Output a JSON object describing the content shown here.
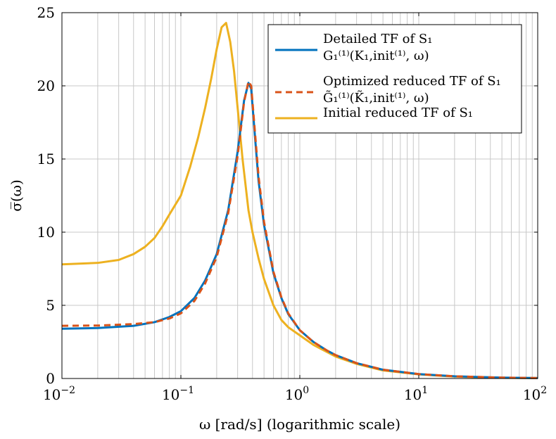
{
  "chart_data": {
    "type": "line",
    "xscale": "log",
    "xlim": [
      0.01,
      100
    ],
    "ylim": [
      0,
      25
    ],
    "grid": true,
    "legend_position": "top-right",
    "xlabel": "ω [rad/s] (logarithmic scale)",
    "ylabel": "σ̅(ω)",
    "x_tick_labels": [
      {
        "value": 0.01,
        "base": "10",
        "exp": "−2"
      },
      {
        "value": 0.1,
        "base": "10",
        "exp": "−1"
      },
      {
        "value": 1,
        "base": "10",
        "exp": "0"
      },
      {
        "value": 10,
        "base": "10",
        "exp": "1"
      },
      {
        "value": 100,
        "base": "10",
        "exp": "2"
      }
    ],
    "y_ticks": [
      0,
      5,
      10,
      15,
      20,
      25
    ],
    "series": [
      {
        "name": "Detailed TF of S₁",
        "name_line2": "G₁⁽¹⁾(K₁,init⁽¹⁾, ω)",
        "color": "#0072BD",
        "style": "solid",
        "points": [
          [
            0.01,
            3.4
          ],
          [
            0.02,
            3.45
          ],
          [
            0.04,
            3.6
          ],
          [
            0.06,
            3.85
          ],
          [
            0.08,
            4.2
          ],
          [
            0.1,
            4.6
          ],
          [
            0.13,
            5.5
          ],
          [
            0.16,
            6.7
          ],
          [
            0.2,
            8.5
          ],
          [
            0.25,
            11.5
          ],
          [
            0.3,
            15.5
          ],
          [
            0.34,
            19.0
          ],
          [
            0.37,
            20.2
          ],
          [
            0.39,
            19.8
          ],
          [
            0.42,
            16.5
          ],
          [
            0.45,
            13.5
          ],
          [
            0.5,
            10.5
          ],
          [
            0.6,
            7.2
          ],
          [
            0.7,
            5.5
          ],
          [
            0.8,
            4.4
          ],
          [
            1.0,
            3.3
          ],
          [
            1.3,
            2.5
          ],
          [
            1.7,
            1.9
          ],
          [
            2.0,
            1.6
          ],
          [
            3.0,
            1.05
          ],
          [
            5.0,
            0.6
          ],
          [
            10.0,
            0.3
          ],
          [
            20.0,
            0.15
          ],
          [
            50.0,
            0.06
          ],
          [
            100.0,
            0.03
          ]
        ]
      },
      {
        "name": "Optimized reduced TF of S₁",
        "name_line2": "G̃₁⁽¹⁾(K̃₁,init⁽¹⁾, ω)",
        "color": "#D95319",
        "style": "dashed",
        "points": [
          [
            0.01,
            3.6
          ],
          [
            0.02,
            3.62
          ],
          [
            0.04,
            3.72
          ],
          [
            0.06,
            3.85
          ],
          [
            0.08,
            4.1
          ],
          [
            0.1,
            4.45
          ],
          [
            0.13,
            5.3
          ],
          [
            0.16,
            6.5
          ],
          [
            0.2,
            8.3
          ],
          [
            0.25,
            11.3
          ],
          [
            0.3,
            15.2
          ],
          [
            0.34,
            18.9
          ],
          [
            0.37,
            20.3
          ],
          [
            0.39,
            20.0
          ],
          [
            0.42,
            16.8
          ],
          [
            0.45,
            13.8
          ],
          [
            0.5,
            10.7
          ],
          [
            0.6,
            7.3
          ],
          [
            0.7,
            5.55
          ],
          [
            0.8,
            4.45
          ],
          [
            1.0,
            3.3
          ],
          [
            1.3,
            2.5
          ],
          [
            1.7,
            1.9
          ],
          [
            2.0,
            1.6
          ],
          [
            3.0,
            1.05
          ],
          [
            5.0,
            0.6
          ],
          [
            10.0,
            0.3
          ],
          [
            20.0,
            0.15
          ],
          [
            50.0,
            0.06
          ],
          [
            100.0,
            0.03
          ]
        ]
      },
      {
        "name": "Initial reduced TF of S₁",
        "color": "#EDB120",
        "style": "solid",
        "points": [
          [
            0.01,
            7.8
          ],
          [
            0.02,
            7.9
          ],
          [
            0.03,
            8.1
          ],
          [
            0.04,
            8.5
          ],
          [
            0.05,
            9.0
          ],
          [
            0.06,
            9.6
          ],
          [
            0.07,
            10.4
          ],
          [
            0.08,
            11.2
          ],
          [
            0.1,
            12.5
          ],
          [
            0.12,
            14.5
          ],
          [
            0.14,
            16.5
          ],
          [
            0.16,
            18.5
          ],
          [
            0.18,
            20.5
          ],
          [
            0.2,
            22.5
          ],
          [
            0.22,
            24.0
          ],
          [
            0.24,
            24.3
          ],
          [
            0.26,
            23.0
          ],
          [
            0.28,
            21.0
          ],
          [
            0.3,
            18.5
          ],
          [
            0.33,
            15.0
          ],
          [
            0.37,
            11.5
          ],
          [
            0.4,
            10.0
          ],
          [
            0.45,
            8.2
          ],
          [
            0.5,
            6.8
          ],
          [
            0.6,
            5.0
          ],
          [
            0.7,
            4.0
          ],
          [
            0.8,
            3.5
          ],
          [
            1.0,
            2.95
          ],
          [
            1.3,
            2.3
          ],
          [
            1.7,
            1.8
          ],
          [
            2.0,
            1.5
          ],
          [
            3.0,
            1.0
          ],
          [
            5.0,
            0.55
          ],
          [
            10.0,
            0.28
          ],
          [
            20.0,
            0.13
          ],
          [
            50.0,
            0.05
          ],
          [
            100.0,
            0.03
          ]
        ]
      }
    ]
  }
}
